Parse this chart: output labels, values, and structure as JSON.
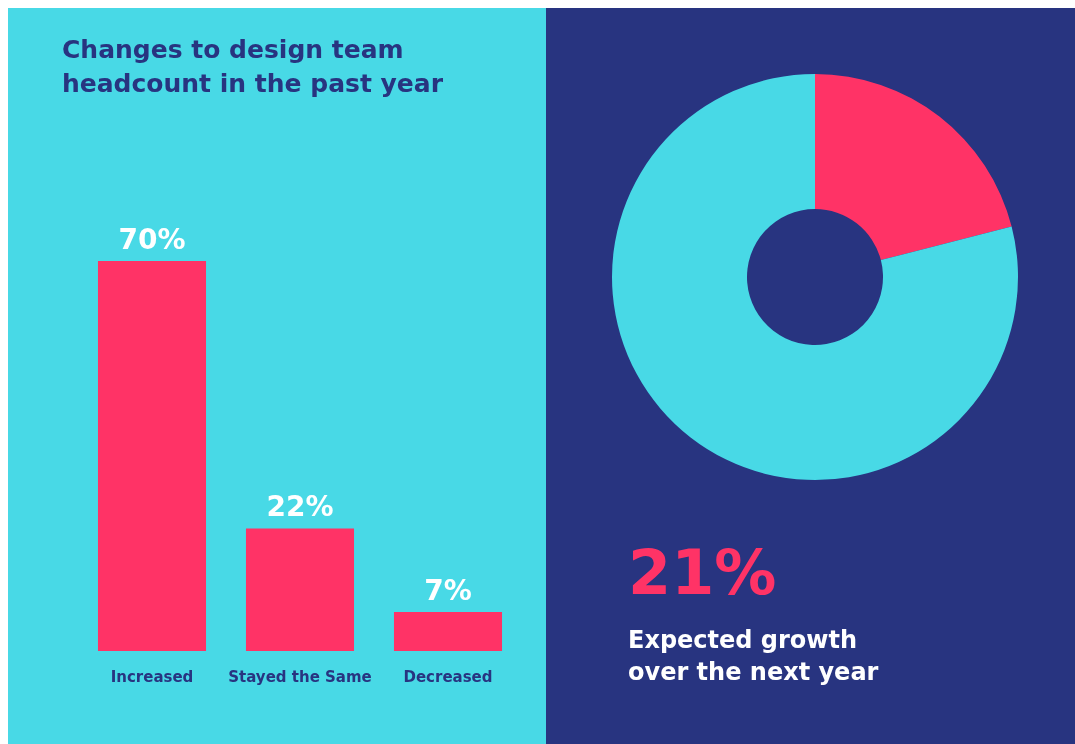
{
  "chart_data": [
    {
      "type": "bar",
      "title": "Changes to design team headcount in the past year",
      "categories": [
        "Increased",
        "Stayed the Same",
        "Decreased"
      ],
      "values": [
        70,
        22,
        7
      ],
      "value_labels": [
        "70%",
        "22%",
        "7%"
      ],
      "color": "#ff3366",
      "tick_labels": "x"
    },
    {
      "type": "donut",
      "title": "Expected growth over the next year",
      "annotations": [
        "21%"
      ],
      "categories": [
        null,
        null
      ],
      "values": [
        21,
        79
      ],
      "colors": [
        "#ff3366",
        "#48d9e6"
      ]
    }
  ]
}
